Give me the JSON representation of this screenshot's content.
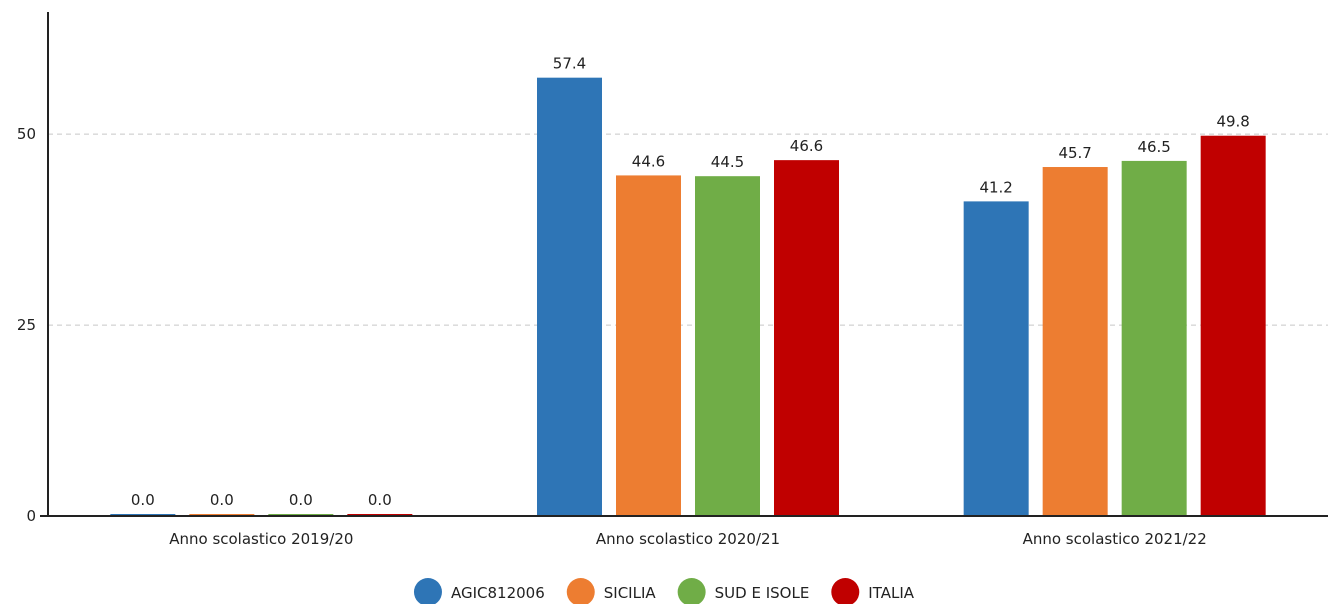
{
  "chart_data": {
    "type": "bar",
    "categories": [
      "Anno scolastico 2019/20",
      "Anno scolastico 2020/21",
      "Anno scolastico 2021/22"
    ],
    "series": [
      {
        "name": "AGIC812006",
        "color": "#2e75b6",
        "values": [
          0.0,
          57.4,
          41.2
        ],
        "labels": [
          "0.0",
          "57.4",
          "41.2"
        ]
      },
      {
        "name": "SICILIA",
        "color": "#ed7d31",
        "values": [
          0.0,
          44.6,
          45.7
        ],
        "labels": [
          "0.0",
          "44.6",
          "45.7"
        ]
      },
      {
        "name": "SUD E ISOLE",
        "color": "#70ad47",
        "values": [
          0.0,
          44.5,
          46.5
        ],
        "labels": [
          "0.0",
          "44.5",
          "46.5"
        ]
      },
      {
        "name": "ITALIA",
        "color": "#c00000",
        "values": [
          0.0,
          46.6,
          49.8
        ],
        "labels": [
          "0.0",
          "46.6",
          "49.8"
        ]
      }
    ],
    "yticks": [
      0,
      25,
      50
    ],
    "ytick_labels": [
      "0",
      "25",
      "50"
    ],
    "ylim": [
      0,
      66
    ],
    "grid": true,
    "legend_position": "bottom-center"
  }
}
